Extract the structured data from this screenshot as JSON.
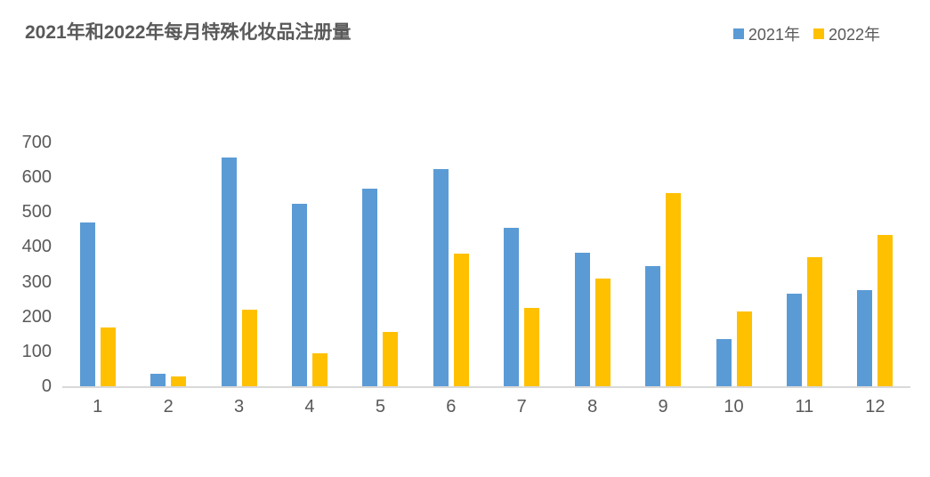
{
  "header": {
    "title": "2021年和2022年每月特殊化妆品注册量"
  },
  "colors": {
    "series_2021": "#5B9BD5",
    "series_2022": "#FFC000",
    "axis_line": "#D9D9D9",
    "text": "#595959",
    "background": "#FFFFFF"
  },
  "chart_data": {
    "type": "bar",
    "title": "2021年和2022年每月特殊化妆品注册量",
    "categories": [
      "1",
      "2",
      "3",
      "4",
      "5",
      "6",
      "7",
      "8",
      "9",
      "10",
      "11",
      "12"
    ],
    "series": [
      {
        "name": "2021年",
        "color": "#5B9BD5",
        "values": [
          470,
          35,
          656,
          524,
          568,
          623,
          456,
          382,
          346,
          136,
          267,
          275
        ]
      },
      {
        "name": "2022年",
        "color": "#FFC000",
        "values": [
          168,
          28,
          220,
          94,
          155,
          381,
          224,
          310,
          555,
          214,
          371,
          434
        ]
      }
    ],
    "xlabel": "",
    "ylabel": "",
    "ylim": [
      0,
      700
    ],
    "yticks": [
      0,
      100,
      200,
      300,
      400,
      500,
      600,
      700
    ],
    "grid": false,
    "legend_position": "top-right"
  }
}
